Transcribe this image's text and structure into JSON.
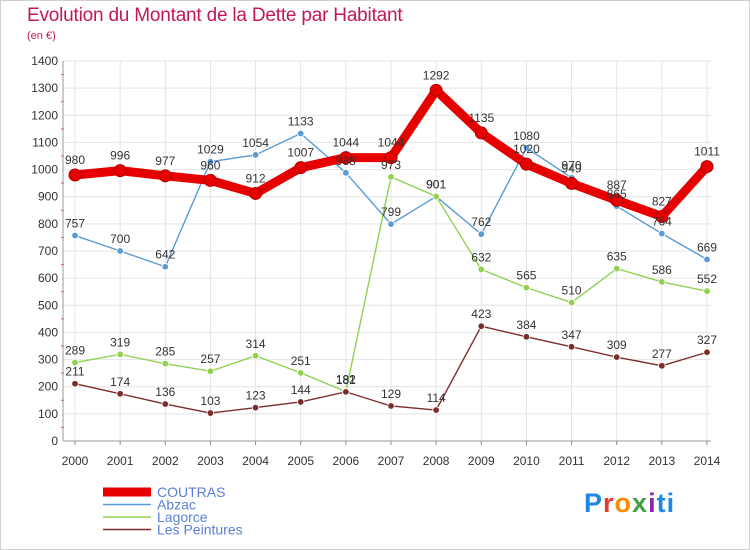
{
  "header": {
    "title": "Evolution du Montant de la Dette par Habitant",
    "unit": "(en €)"
  },
  "logo": {
    "text": "Proxiti",
    "letters": [
      "P",
      "r",
      "o",
      "x",
      "i",
      "ti"
    ]
  },
  "chart_data": {
    "type": "line",
    "title": "Evolution du Montant de la Dette par Habitant",
    "ylabel": "(en €)",
    "xlabel": "",
    "categories": [
      "2000",
      "2001",
      "2002",
      "2003",
      "2004",
      "2005",
      "2006",
      "2007",
      "2008",
      "2009",
      "2010",
      "2011",
      "2012",
      "2013",
      "2014"
    ],
    "ylim": [
      0,
      1400
    ],
    "yticks": [
      0,
      100,
      200,
      300,
      400,
      500,
      600,
      700,
      800,
      900,
      1000,
      1100,
      1200,
      1300,
      1400
    ],
    "grid": true,
    "legend_position": "bottom-left",
    "series": [
      {
        "name": "COUTRAS",
        "color": "#e60000",
        "emphasis": true,
        "values": [
          980,
          996,
          977,
          960,
          912,
          1007,
          1044,
          1044,
          1292,
          1135,
          1020,
          949,
          887,
          827,
          1011
        ],
        "labels": [
          "980",
          "996",
          "977",
          "960",
          "912",
          "1007",
          "1044",
          "1044",
          "1292",
          "1135",
          "1020",
          "949",
          "887",
          "827",
          "1011"
        ]
      },
      {
        "name": "Abzac",
        "color": "#5b9bd5",
        "values": [
          757,
          700,
          642,
          1029,
          1054,
          1133,
          988,
          799,
          901,
          762,
          1080,
          970,
          865,
          764,
          669
        ],
        "labels": [
          "757",
          "700",
          "642",
          "1029",
          "1054",
          "1133",
          "988",
          "799",
          "901",
          "762",
          "1080",
          "970",
          "865",
          "764",
          "669"
        ]
      },
      {
        "name": "Lagorce",
        "color": "#92d050",
        "values": [
          289,
          319,
          285,
          257,
          314,
          251,
          182,
          973,
          901,
          632,
          565,
          510,
          635,
          586,
          552
        ],
        "labels": [
          "289",
          "319",
          "285",
          "257",
          "314",
          "251",
          "182",
          "973",
          "901",
          "632",
          "565",
          "510",
          "635",
          "586",
          "552"
        ]
      },
      {
        "name": "Les Peintures",
        "color": "#7b2c2c",
        "values": [
          211,
          174,
          136,
          103,
          123,
          144,
          181,
          129,
          114,
          423,
          384,
          347,
          309,
          277,
          327
        ],
        "labels": [
          "211",
          "174",
          "136",
          "103",
          "123",
          "144",
          "181",
          "129",
          "114",
          "423",
          "384",
          "347",
          "309",
          "277",
          "327"
        ]
      }
    ]
  }
}
